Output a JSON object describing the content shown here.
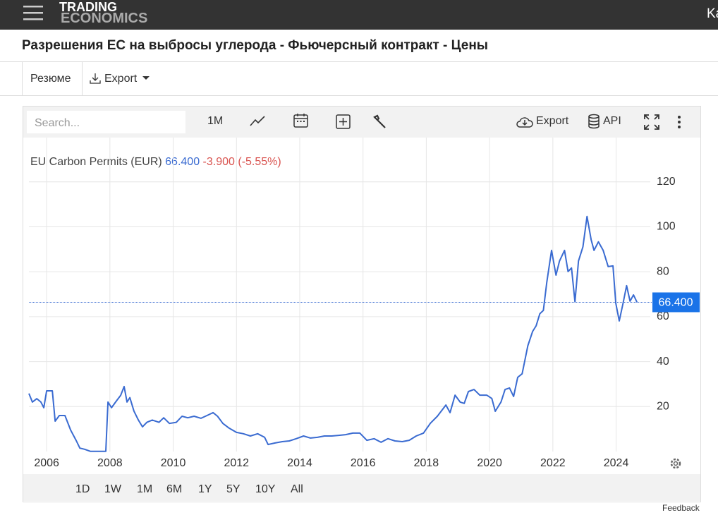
{
  "header": {
    "logo_top": "TRADING",
    "logo_bottom": "ECONOMICS",
    "right_text": "Ka"
  },
  "page_title": "Разрешения ЕС на выбросы углерода - Фьючерсный контракт - Цены",
  "tabs": [
    "Резюме",
    "Export"
  ],
  "toolbar": {
    "search_placeholder": "Search...",
    "interval": "1M",
    "export": "Export",
    "api": "API"
  },
  "chart_data": {
    "type": "line",
    "legend": {
      "last": "66.400",
      "change": "-3.900",
      "change_pct": "(-5.55%)"
    },
    "current": {
      "value": 66.4,
      "label": "66.400"
    },
    "series": [
      {
        "name": "EU Carbon Permits (EUR)",
        "color": "#3a6bd1",
        "x": [
          2005.44,
          2005.55,
          2005.69,
          2005.82,
          2005.91,
          2006.0,
          2006.18,
          2006.27,
          2006.4,
          2006.58,
          2006.76,
          2006.94,
          2007.05,
          2007.2,
          2007.38,
          2007.87,
          2007.94,
          2008.05,
          2008.21,
          2008.34,
          2008.45,
          2008.54,
          2008.63,
          2008.76,
          2008.9,
          2009.03,
          2009.17,
          2009.34,
          2009.55,
          2009.7,
          2009.88,
          2010.1,
          2010.28,
          2010.46,
          2010.66,
          2010.88,
          2011.11,
          2011.26,
          2011.4,
          2011.57,
          2011.77,
          2012.0,
          2012.22,
          2012.44,
          2012.67,
          2012.89,
          2013.0,
          2013.22,
          2013.45,
          2013.67,
          2013.89,
          2014.12,
          2014.34,
          2014.56,
          2014.78,
          2015.01,
          2015.23,
          2015.45,
          2015.68,
          2015.9,
          2016.12,
          2016.35,
          2016.57,
          2016.79,
          2017.01,
          2017.24,
          2017.46,
          2017.68,
          2017.91,
          2018.13,
          2018.35,
          2018.62,
          2018.75,
          2018.91,
          2019.07,
          2019.2,
          2019.33,
          2019.51,
          2019.69,
          2019.91,
          2020.07,
          2020.18,
          2020.36,
          2020.49,
          2020.63,
          2020.76,
          2020.89,
          2021.03,
          2021.21,
          2021.36,
          2021.47,
          2021.59,
          2021.7,
          2021.81,
          2021.96,
          2022.1,
          2022.21,
          2022.37,
          2022.48,
          2022.59,
          2022.7,
          2022.81,
          2022.95,
          2023.08,
          2023.21,
          2023.3,
          2023.44,
          2023.59,
          2023.75,
          2023.9,
          2023.99,
          2024.1,
          2024.22,
          2024.33,
          2024.44,
          2024.55,
          2024.66
        ],
        "values": [
          25.8,
          22,
          23.5,
          22,
          19.5,
          27,
          27,
          13.5,
          16,
          16,
          9.5,
          4.7,
          1.5,
          1,
          0.1,
          0.1,
          22,
          19.5,
          22.6,
          25,
          28.9,
          22,
          24,
          18,
          14,
          11,
          13,
          14,
          13,
          15,
          12.5,
          13,
          15.7,
          15,
          15.7,
          14.8,
          16.3,
          17.3,
          15.7,
          12.5,
          10.4,
          8.5,
          7.9,
          6.9,
          7.9,
          6.3,
          3.1,
          3.8,
          4.4,
          4.7,
          5.7,
          6.9,
          6,
          6.3,
          6.9,
          6.9,
          7.2,
          7.5,
          8.2,
          8.2,
          5,
          5.7,
          4.1,
          5.7,
          4.7,
          4.4,
          5,
          6.9,
          8.2,
          12.6,
          15.7,
          20.7,
          17.3,
          25.1,
          22,
          21.4,
          26.7,
          27.6,
          25.1,
          25.1,
          23.6,
          17.9,
          22,
          27.6,
          28.3,
          24.5,
          33,
          34.6,
          47.1,
          53.4,
          55.9,
          61.3,
          62.8,
          75.4,
          89.5,
          78.5,
          84.8,
          89.5,
          80.1,
          81.7,
          66.6,
          84.8,
          91.1,
          104.6,
          94.3,
          89.5,
          93.3,
          89.5,
          82.3,
          82.6,
          66,
          58.1,
          66,
          73.8,
          66.9,
          69.7,
          66.4
        ]
      }
    ],
    "xlim": [
      2005.44,
      2025.08
    ],
    "xticks": [
      2006,
      2008,
      2010,
      2012,
      2014,
      2016,
      2018,
      2020,
      2022,
      2024
    ],
    "ylim": [
      0,
      135
    ],
    "yticks": [
      20,
      40,
      60,
      80,
      100,
      120
    ],
    "grid": true
  },
  "ranges": [
    "1D",
    "1W",
    "1M",
    "6M",
    "1Y",
    "5Y",
    "10Y",
    "All"
  ],
  "footer": "Feedback"
}
